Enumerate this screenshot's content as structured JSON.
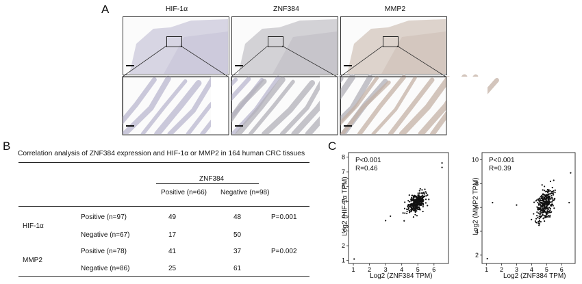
{
  "panel_a": {
    "letter": "A",
    "stains": [
      "HIF-1α",
      "ZNF384",
      "MMP2"
    ],
    "tint_colors": [
      "#b9b7cf",
      "#b2b0b8",
      "#c4b2a5"
    ]
  },
  "panel_b": {
    "letter": "B",
    "title": "Correlation analysis of ZNF384 expression and HIF-1α or MMP2 in 164 human CRC tissues",
    "group_header": "ZNF384",
    "col_headers": [
      "Positive (n=66)",
      "Negative (n=98)"
    ],
    "markers": [
      {
        "name": "HIF-1α",
        "p_value": "P=0.001",
        "rows": [
          {
            "label": "Positive (n=97)",
            "values": [
              "49",
              "48"
            ]
          },
          {
            "label": "Negative (n=67)",
            "values": [
              "17",
              "50"
            ]
          }
        ]
      },
      {
        "name": "MMP2",
        "p_value": "P=0.002",
        "rows": [
          {
            "label": "Positive (n=78)",
            "values": [
              "41",
              "37"
            ]
          },
          {
            "label": "Negative (n=86)",
            "values": [
              "25",
              "61"
            ]
          }
        ]
      }
    ]
  },
  "panel_c": {
    "letter": "C"
  },
  "chart_data": [
    {
      "type": "scatter",
      "xlabel": "Log2 (ZNF384 TPM)",
      "ylabel": "Log2 (HIF-1α TPM)",
      "xlim": [
        0.7,
        6.9
      ],
      "ylim": [
        0.8,
        8.3
      ],
      "xticks": [
        1,
        2,
        3,
        4,
        5,
        6
      ],
      "yticks": [
        1,
        2,
        3,
        4,
        5,
        6,
        7,
        8
      ],
      "annotations": [
        "P<0.001",
        "R=0.46"
      ],
      "cluster": {
        "x_center": 4.9,
        "y_center": 4.9,
        "n_points": 330
      },
      "outliers": [
        [
          1.05,
          1.1
        ],
        [
          6.5,
          7.6
        ],
        [
          6.5,
          7.3
        ],
        [
          3.3,
          4.0
        ],
        [
          3.0,
          3.7
        ]
      ]
    },
    {
      "type": "scatter",
      "xlabel": "Log2 (ZNF384 TPM)",
      "ylabel": "Log2 (MMP2 TPM)",
      "xlim": [
        0.7,
        6.9
      ],
      "ylim": [
        1.3,
        10.6
      ],
      "xticks": [
        1,
        2,
        3,
        4,
        5,
        6
      ],
      "yticks": [
        2,
        4,
        6,
        8,
        10
      ],
      "annotations": [
        "P<0.001",
        "R=0.39"
      ],
      "cluster": {
        "x_center": 4.9,
        "y_center": 6.3,
        "n_points": 330
      },
      "outliers": [
        [
          1.05,
          1.7
        ],
        [
          1.4,
          6.4
        ],
        [
          6.6,
          8.9
        ],
        [
          3.0,
          6.2
        ],
        [
          6.5,
          6.4
        ]
      ]
    }
  ]
}
